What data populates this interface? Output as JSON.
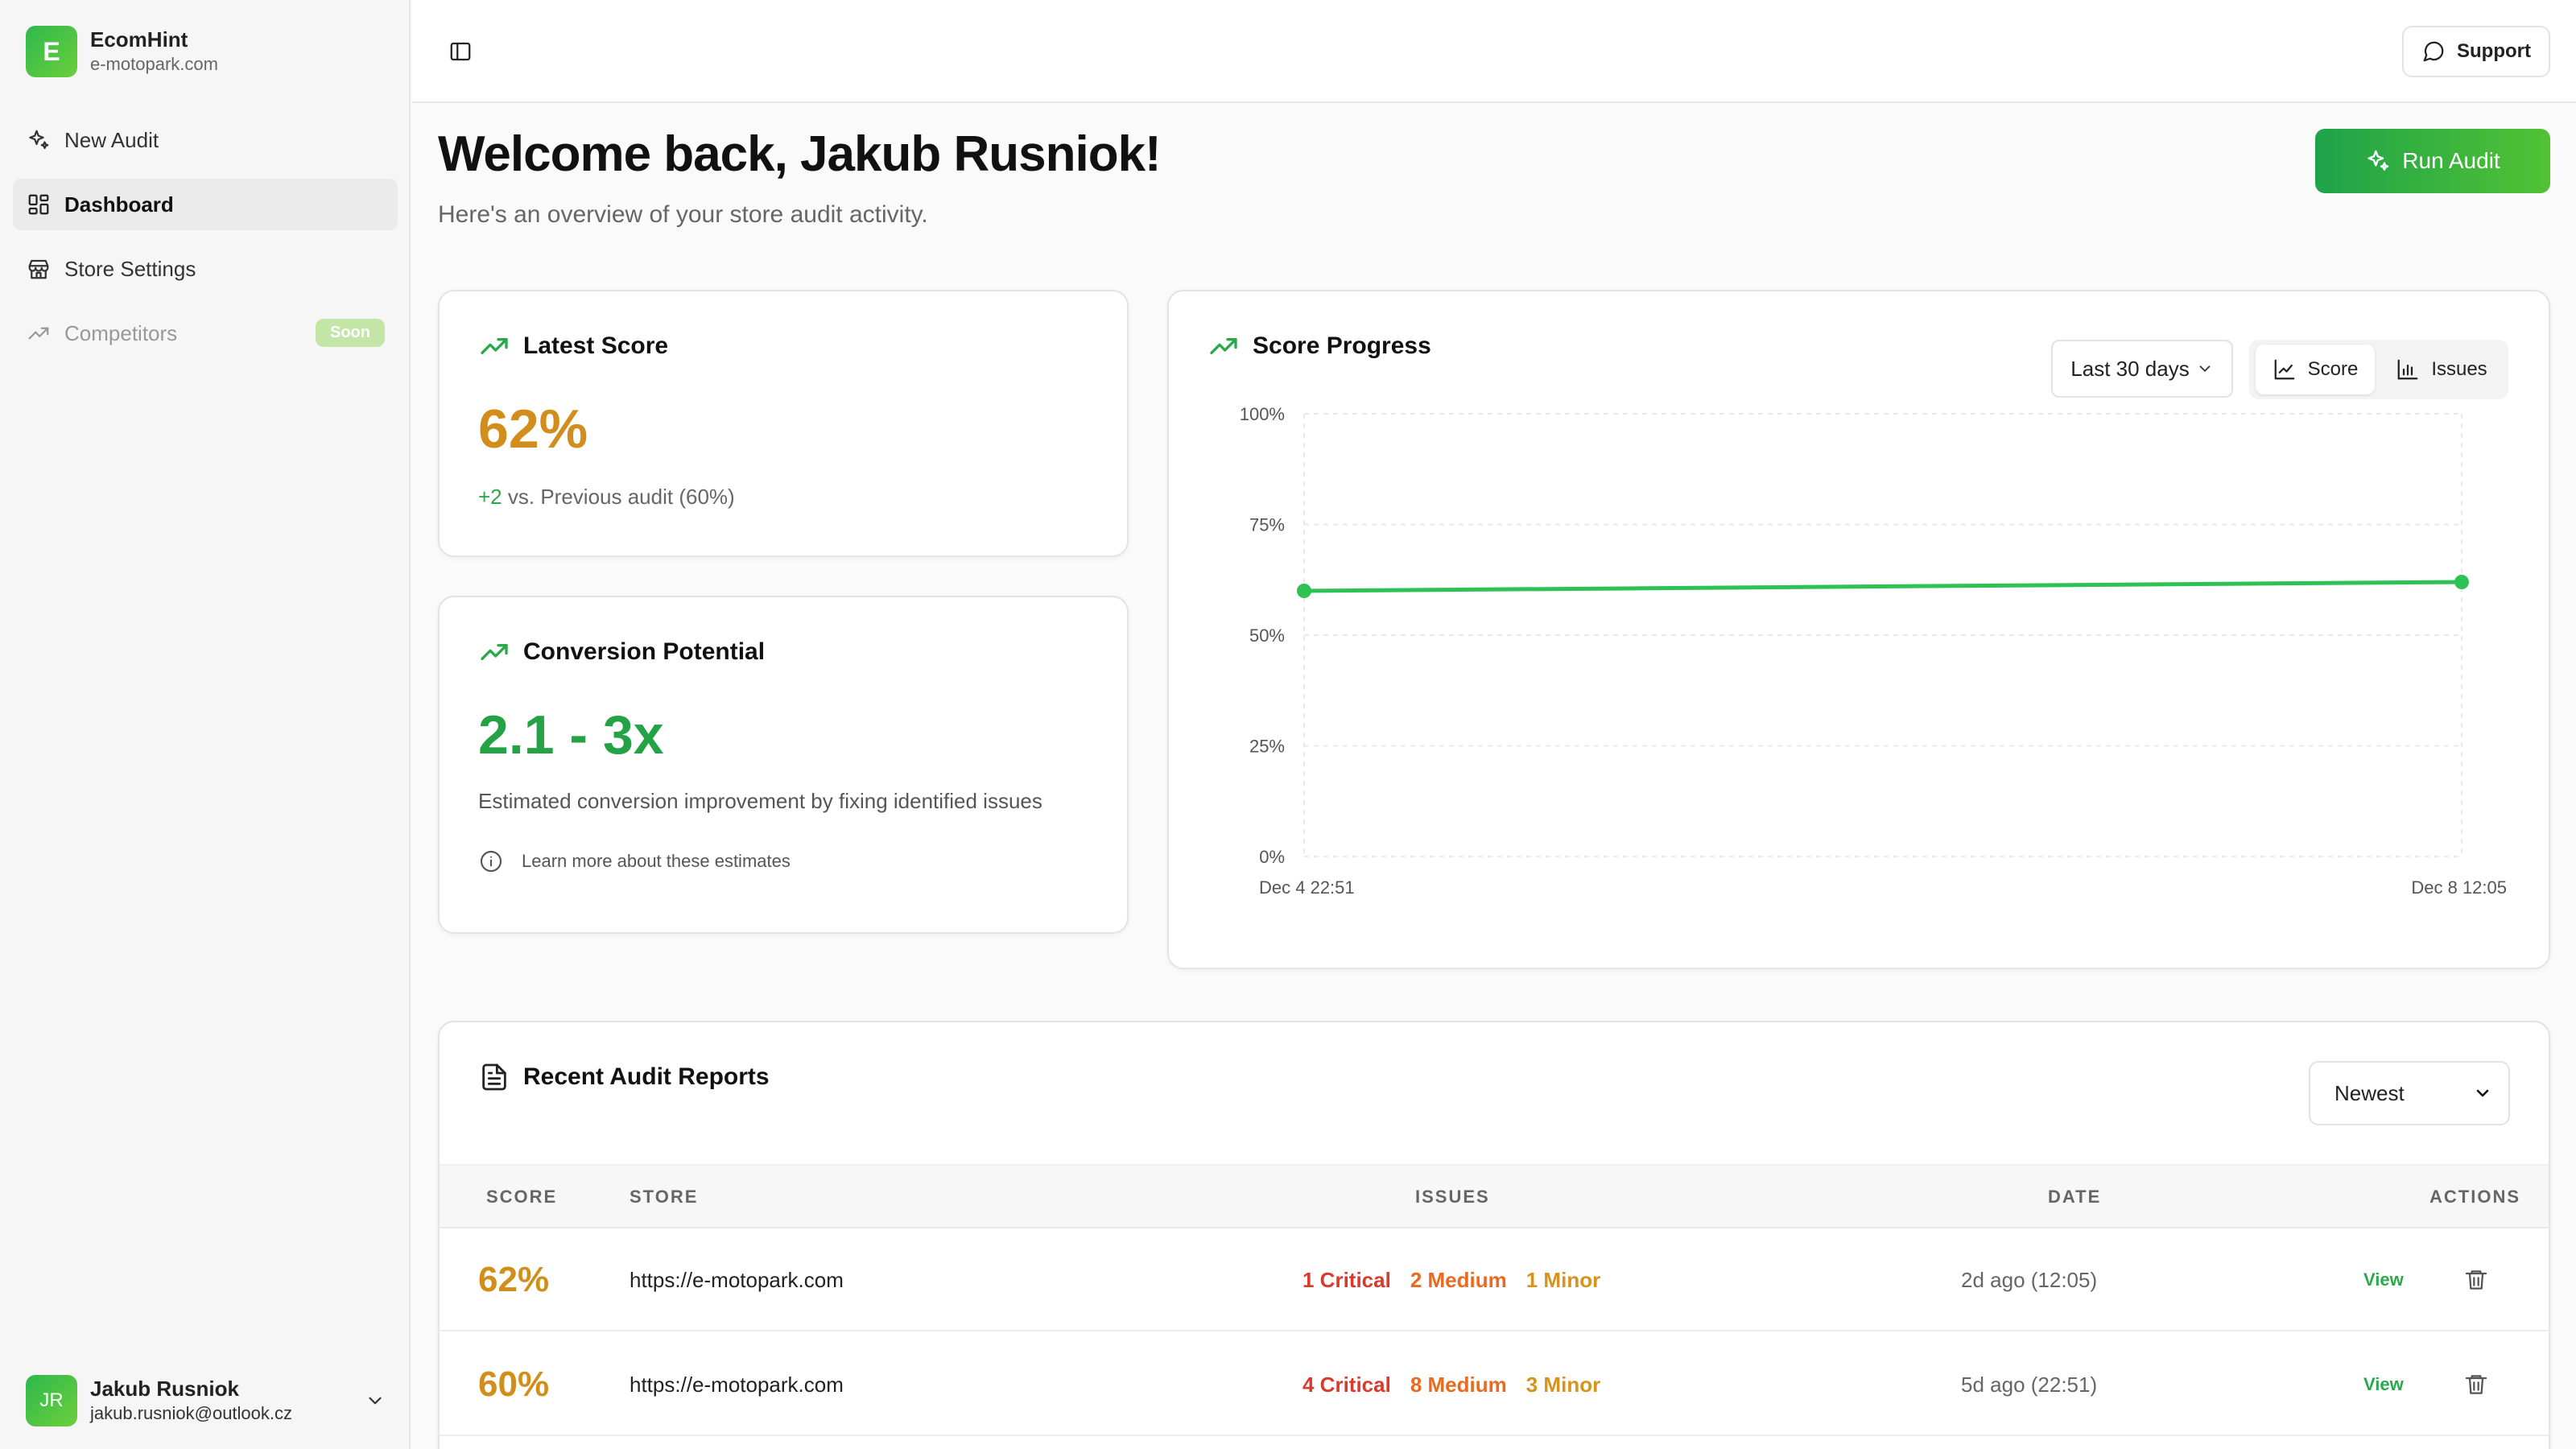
{
  "brand": {
    "logo_letter": "E",
    "name": "EcomHint",
    "domain": "e-motopark.com"
  },
  "nav": [
    {
      "label": "New Audit",
      "icon": "sparkles-icon"
    },
    {
      "label": "Dashboard",
      "icon": "dashboard-grid-icon",
      "active": true
    },
    {
      "label": "Store Settings",
      "icon": "store-icon"
    },
    {
      "label": "Competitors",
      "icon": "trending-up-icon",
      "badge": "Soon",
      "disabled": true
    }
  ],
  "user": {
    "initials": "JR",
    "name": "Jakub Rusniok",
    "email": "jakub.rusniok@outlook.cz"
  },
  "topbar": {
    "support_label": "Support"
  },
  "header": {
    "title": "Welcome back, Jakub Rusniok!",
    "subtitle": "Here's an overview of your store audit activity.",
    "run_audit_label": "Run Audit"
  },
  "latest_score": {
    "title": "Latest Score",
    "value": "62%",
    "delta": "+2",
    "delta_note": "vs. Previous audit (60%)"
  },
  "conversion": {
    "title": "Conversion Potential",
    "value": "2.1 - 3x",
    "description": "Estimated conversion improvement by fixing identified issues",
    "link": "Learn more about these estimates"
  },
  "score_progress": {
    "title": "Score Progress",
    "range_label": "Last 30 days",
    "toggle": {
      "score_label": "Score",
      "issues_label": "Issues",
      "selected": "Score"
    }
  },
  "chart_data": {
    "type": "line",
    "x": [
      "Dec 4 22:51",
      "Dec 8 12:05"
    ],
    "series": [
      {
        "values": [
          60,
          62
        ],
        "color": "#2ec254"
      }
    ],
    "ylim": [
      0,
      100
    ],
    "yticks": [
      "0%",
      "25%",
      "50%",
      "75%",
      "100%"
    ],
    "grid": true
  },
  "reports": {
    "title": "Recent Audit Reports",
    "sort_label": "Newest",
    "columns": [
      "SCORE",
      "STORE",
      "ISSUES",
      "DATE",
      "ACTIONS"
    ],
    "rows": [
      {
        "score": "62%",
        "store": "https://e-motopark.com",
        "critical": "1 Critical",
        "medium": "2 Medium",
        "minor": "1 Minor",
        "date": "2d ago (12:05)",
        "view": "View"
      },
      {
        "score": "60%",
        "store": "https://e-motopark.com",
        "critical": "4 Critical",
        "medium": "8 Medium",
        "minor": "3 Minor",
        "date": "5d ago (22:51)",
        "view": "View"
      }
    ]
  },
  "colors": {
    "accent": "#2aa84a",
    "score": "#d18e1a",
    "critical": "#d93a2b",
    "medium": "#ea6a1f",
    "minor": "#d6931d"
  }
}
